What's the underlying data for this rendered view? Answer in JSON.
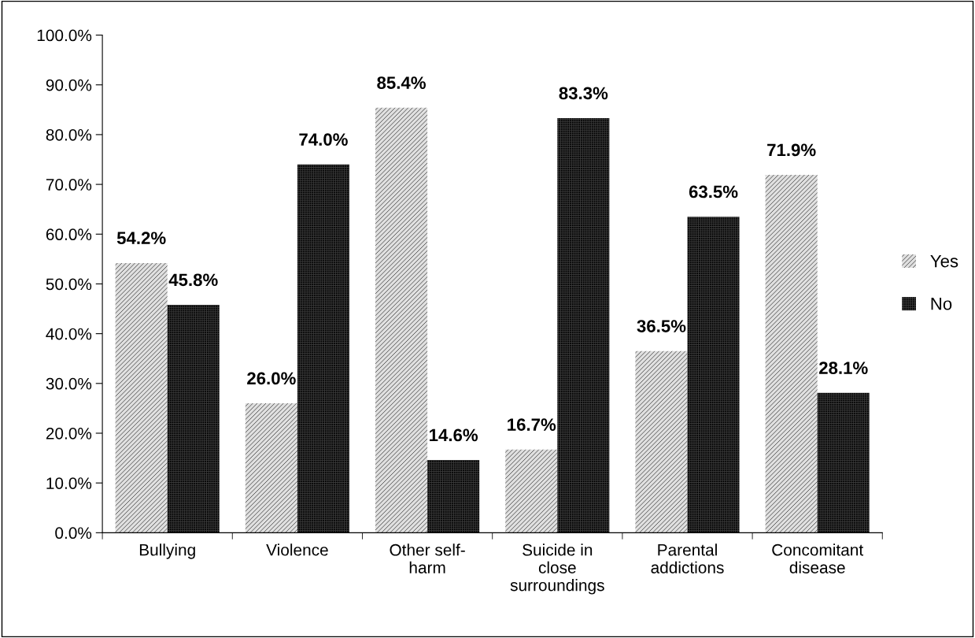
{
  "chart_data": {
    "type": "bar",
    "categories": [
      "Bullying",
      "Violence",
      "Other self-\nharm",
      "Suicide in\nclose\nsurroundings",
      "Parental\naddictions",
      "Concomitant\ndisease"
    ],
    "series": [
      {
        "name": "Yes",
        "color": "#e0e0e0",
        "values": [
          54.2,
          26.0,
          85.4,
          16.7,
          36.5,
          71.9
        ],
        "value_labels": [
          "54.2%",
          "26.0%",
          "85.4%",
          "16.7%",
          "36.5%",
          "71.9%"
        ]
      },
      {
        "name": "No",
        "color": "#000000",
        "values": [
          45.8,
          74.0,
          14.6,
          83.3,
          63.5,
          28.1
        ],
        "value_labels": [
          "45.8%",
          "74.0%",
          "14.6%",
          "83.3%",
          "63.5%",
          "28.1%"
        ]
      }
    ],
    "ylim": [
      0,
      100
    ],
    "yticks": [
      {
        "value": 0,
        "label": "0.0%"
      },
      {
        "value": 10,
        "label": "10.0%"
      },
      {
        "value": 20,
        "label": "20.0%"
      },
      {
        "value": 30,
        "label": "30.0%"
      },
      {
        "value": 40,
        "label": "40.0%"
      },
      {
        "value": 50,
        "label": "50.0%"
      },
      {
        "value": 60,
        "label": "60.0%"
      },
      {
        "value": 70,
        "label": "70.0%"
      },
      {
        "value": 80,
        "label": "80.0%"
      },
      {
        "value": 90,
        "label": "90.0%"
      },
      {
        "value": 100,
        "label": "100.0%"
      }
    ],
    "grid": false,
    "legend": "right"
  }
}
